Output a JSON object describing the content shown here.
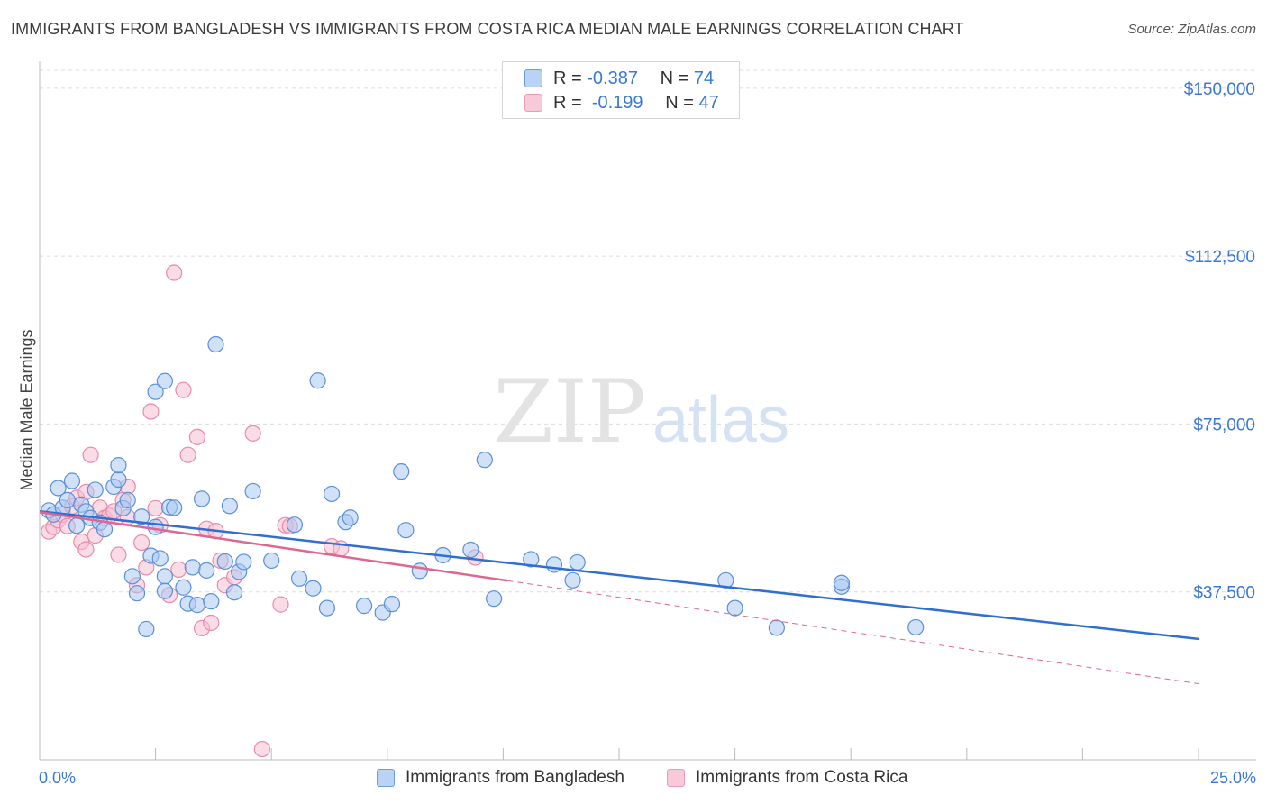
{
  "title": "IMMIGRANTS FROM BANGLADESH VS IMMIGRANTS FROM COSTA RICA MEDIAN MALE EARNINGS CORRELATION CHART",
  "source": "Source: ZipAtlas.com",
  "watermark": {
    "zip": "ZIP",
    "atlas": "atlas"
  },
  "legend": {
    "rows": [
      {
        "r_label": "R =",
        "r_value": "-0.387",
        "n_label": "N =",
        "n_value": "74"
      },
      {
        "r_label": "R =",
        "r_value": "-0.199",
        "n_label": "N =",
        "n_value": "47"
      }
    ]
  },
  "colors": {
    "blue_fill": "#a9c8f2",
    "blue_stroke": "#5b90d8",
    "blue_line": "#2f6fd0",
    "pink_fill": "#f6bfd2",
    "pink_stroke": "#e98aaa",
    "pink_line": "#e0668f",
    "axis_text": "#3a78d8",
    "grid": "#dcdcdc"
  },
  "chart_data": {
    "type": "scatter",
    "title": "IMMIGRANTS FROM BANGLADESH VS IMMIGRANTS FROM COSTA RICA MEDIAN MALE EARNINGS CORRELATION CHART",
    "xlabel": "",
    "ylabel": "Median Male Earnings",
    "xlim": [
      0,
      25
    ],
    "ylim": [
      0,
      154000
    ],
    "x_tick_labels": [
      "0.0%",
      "25.0%"
    ],
    "y_ticks": [
      37500,
      75000,
      112500,
      150000
    ],
    "y_tick_labels": [
      "$37,500",
      "$75,000",
      "$112,500",
      "$150,000"
    ],
    "grid": true,
    "legend_position": "bottom",
    "series": [
      {
        "name": "Immigrants from Bangladesh",
        "r": -0.387,
        "n": 74,
        "trend": {
          "x": [
            0,
            25
          ],
          "y": [
            55500,
            27000
          ],
          "style": "solid"
        },
        "points": [
          [
            0.2,
            55700
          ],
          [
            0.3,
            54800
          ],
          [
            0.4,
            60700
          ],
          [
            0.5,
            56300
          ],
          [
            0.6,
            58000
          ],
          [
            0.7,
            62300
          ],
          [
            0.8,
            52300
          ],
          [
            0.9,
            57000
          ],
          [
            1.0,
            55500
          ],
          [
            1.1,
            54000
          ],
          [
            1.2,
            60300
          ],
          [
            1.3,
            53000
          ],
          [
            1.4,
            51500
          ],
          [
            1.6,
            61000
          ],
          [
            1.7,
            62600
          ],
          [
            1.7,
            65800
          ],
          [
            1.8,
            56200
          ],
          [
            1.9,
            58000
          ],
          [
            2.0,
            41000
          ],
          [
            2.1,
            37200
          ],
          [
            2.2,
            54300
          ],
          [
            2.3,
            29200
          ],
          [
            2.4,
            45600
          ],
          [
            2.5,
            52000
          ],
          [
            2.6,
            45000
          ],
          [
            2.7,
            41000
          ],
          [
            2.5,
            82200
          ],
          [
            2.7,
            84600
          ],
          [
            2.7,
            37700
          ],
          [
            2.8,
            56400
          ],
          [
            2.9,
            56300
          ],
          [
            3.1,
            38500
          ],
          [
            3.2,
            34900
          ],
          [
            3.3,
            43000
          ],
          [
            3.4,
            34600
          ],
          [
            3.5,
            58300
          ],
          [
            3.6,
            42300
          ],
          [
            3.7,
            35400
          ],
          [
            3.8,
            92800
          ],
          [
            4.0,
            44300
          ],
          [
            4.1,
            56700
          ],
          [
            4.2,
            37400
          ],
          [
            4.3,
            42000
          ],
          [
            4.4,
            44200
          ],
          [
            4.6,
            60000
          ],
          [
            5.0,
            44500
          ],
          [
            5.5,
            52500
          ],
          [
            5.6,
            40500
          ],
          [
            5.9,
            38300
          ],
          [
            6.0,
            84700
          ],
          [
            6.2,
            33900
          ],
          [
            6.3,
            59400
          ],
          [
            6.6,
            53100
          ],
          [
            6.7,
            54100
          ],
          [
            7.0,
            34400
          ],
          [
            7.4,
            32900
          ],
          [
            7.6,
            34800
          ],
          [
            7.8,
            64400
          ],
          [
            7.9,
            51300
          ],
          [
            8.2,
            42200
          ],
          [
            8.7,
            45700
          ],
          [
            9.3,
            46900
          ],
          [
            9.6,
            67000
          ],
          [
            9.8,
            36000
          ],
          [
            10.6,
            44800
          ],
          [
            11.1,
            43600
          ],
          [
            11.6,
            44100
          ],
          [
            11.5,
            40100
          ],
          [
            14.8,
            40100
          ],
          [
            15.0,
            33900
          ],
          [
            17.3,
            38700
          ],
          [
            17.3,
            39500
          ],
          [
            15.9,
            29500
          ],
          [
            18.9,
            29600
          ]
        ]
      },
      {
        "name": "Immigrants from Costa Rica",
        "r": -0.199,
        "n": 47,
        "trend": {
          "x": [
            0,
            10.1
          ],
          "y": [
            55300,
            40000
          ],
          "style": "solid",
          "extended_to": [
            25,
            17000
          ],
          "extended_style": "dashed"
        },
        "points": [
          [
            0.2,
            51000
          ],
          [
            0.3,
            52000
          ],
          [
            0.4,
            53500
          ],
          [
            0.5,
            54800
          ],
          [
            0.6,
            52200
          ],
          [
            0.7,
            56600
          ],
          [
            0.8,
            58500
          ],
          [
            0.9,
            48700
          ],
          [
            1.0,
            47000
          ],
          [
            1.0,
            59800
          ],
          [
            1.1,
            68100
          ],
          [
            1.2,
            50100
          ],
          [
            1.3,
            56300
          ],
          [
            1.4,
            54000
          ],
          [
            1.5,
            54500
          ],
          [
            1.6,
            55500
          ],
          [
            1.7,
            45800
          ],
          [
            1.8,
            58000
          ],
          [
            1.9,
            61000
          ],
          [
            1.9,
            54200
          ],
          [
            2.1,
            39000
          ],
          [
            2.2,
            48500
          ],
          [
            2.3,
            43000
          ],
          [
            2.4,
            77800
          ],
          [
            2.5,
            56200
          ],
          [
            2.6,
            52400
          ],
          [
            2.8,
            36800
          ],
          [
            2.9,
            108800
          ],
          [
            3.0,
            42500
          ],
          [
            3.1,
            82600
          ],
          [
            3.2,
            68100
          ],
          [
            3.4,
            72100
          ],
          [
            3.5,
            29400
          ],
          [
            3.6,
            51600
          ],
          [
            3.7,
            30600
          ],
          [
            3.8,
            51100
          ],
          [
            3.9,
            44500
          ],
          [
            4.0,
            39000
          ],
          [
            4.2,
            40800
          ],
          [
            4.6,
            72900
          ],
          [
            4.8,
            2400
          ],
          [
            5.2,
            34700
          ],
          [
            5.3,
            52400
          ],
          [
            5.4,
            52200
          ],
          [
            6.3,
            47700
          ],
          [
            6.5,
            47200
          ],
          [
            9.4,
            45200
          ]
        ]
      }
    ]
  }
}
